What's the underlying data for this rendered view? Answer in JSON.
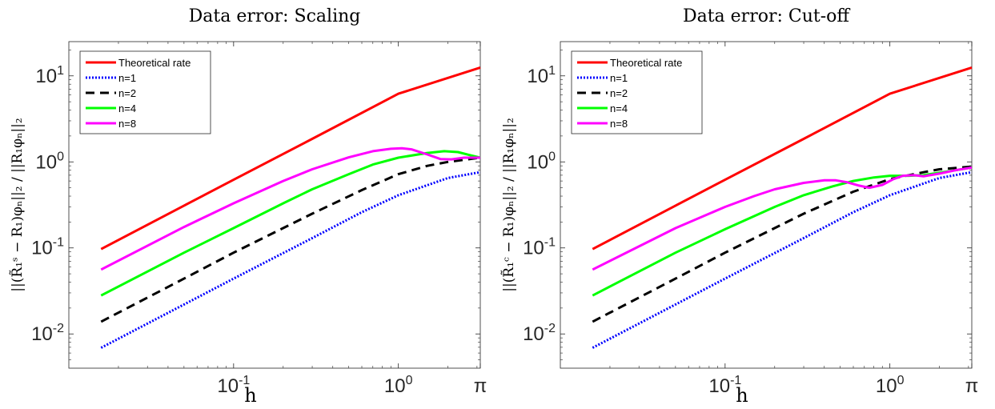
{
  "chart_data": [
    {
      "type": "line",
      "title": "Data error: Scaling",
      "xlabel": "h",
      "ylabel": "||(R̃₁ˢ − R₁)φₙ||₂ / ||R₁φₙ||₂",
      "xscale": "log",
      "yscale": "log",
      "xlim": [
        0.01,
        3.14159
      ],
      "ylim": [
        0.004,
        25
      ],
      "xticks": [
        {
          "value": 0.1,
          "label": "10",
          "exp": "-1"
        },
        {
          "value": 1,
          "label": "10",
          "exp": "0"
        },
        {
          "value": 3.14159,
          "label": "π",
          "exp": ""
        }
      ],
      "yticks": [
        {
          "value": 0.01,
          "label": "10",
          "exp": "-2"
        },
        {
          "value": 0.1,
          "label": "10",
          "exp": "-1"
        },
        {
          "value": 1,
          "label": "10",
          "exp": "0"
        },
        {
          "value": 10,
          "label": "10",
          "exp": "1"
        }
      ],
      "grid": false,
      "legend_position": "top-left",
      "series": [
        {
          "name": "Theoretical rate",
          "color": "#ff0000",
          "style": "solid",
          "x": [
            0.0157,
            0.05,
            0.1,
            0.3,
            1.0,
            3.14159
          ],
          "y": [
            0.097,
            0.31,
            0.62,
            1.85,
            6.2,
            12.5
          ]
        },
        {
          "name": "n=1",
          "color": "#0000ff",
          "style": "dotted",
          "x": [
            0.0157,
            0.05,
            0.1,
            0.3,
            0.6,
            1.0,
            2.0,
            3.14159
          ],
          "y": [
            0.0069,
            0.022,
            0.044,
            0.13,
            0.26,
            0.41,
            0.65,
            0.76
          ]
        },
        {
          "name": "n=2",
          "color": "#000000",
          "style": "dashed",
          "x": [
            0.0157,
            0.05,
            0.1,
            0.3,
            0.6,
            1.0,
            1.5,
            2.0,
            3.14159
          ],
          "y": [
            0.0139,
            0.044,
            0.088,
            0.25,
            0.47,
            0.72,
            0.9,
            1.0,
            1.12
          ]
        },
        {
          "name": "n=4",
          "color": "#00ff00",
          "style": "solid",
          "x": [
            0.0157,
            0.05,
            0.1,
            0.2,
            0.3,
            0.5,
            0.7,
            1.0,
            1.5,
            1.9,
            2.3,
            2.7,
            3.14159
          ],
          "y": [
            0.028,
            0.088,
            0.17,
            0.33,
            0.48,
            0.72,
            0.93,
            1.12,
            1.27,
            1.33,
            1.3,
            1.2,
            1.12
          ]
        },
        {
          "name": "n=8",
          "color": "#ff00ff",
          "style": "solid",
          "x": [
            0.0157,
            0.05,
            0.1,
            0.2,
            0.3,
            0.5,
            0.7,
            0.9,
            1.05,
            1.2,
            1.5,
            1.8,
            2.1,
            2.5,
            3.14159
          ],
          "y": [
            0.056,
            0.175,
            0.33,
            0.6,
            0.82,
            1.13,
            1.33,
            1.42,
            1.44,
            1.4,
            1.22,
            1.08,
            1.07,
            1.12,
            1.12
          ]
        }
      ]
    },
    {
      "type": "line",
      "title": "Data error: Cut-off",
      "xlabel": "h",
      "ylabel": "||(R̃₁ᶜ − R₁)φₙ||₂ / ||R₁φₙ||₂",
      "xscale": "log",
      "yscale": "log",
      "xlim": [
        0.01,
        3.14159
      ],
      "ylim": [
        0.004,
        25
      ],
      "xticks": [
        {
          "value": 0.1,
          "label": "10",
          "exp": "-1"
        },
        {
          "value": 1,
          "label": "10",
          "exp": "0"
        },
        {
          "value": 3.14159,
          "label": "π",
          "exp": ""
        }
      ],
      "yticks": [
        {
          "value": 0.01,
          "label": "10",
          "exp": "-2"
        },
        {
          "value": 0.1,
          "label": "10",
          "exp": "-1"
        },
        {
          "value": 1,
          "label": "10",
          "exp": "0"
        },
        {
          "value": 10,
          "label": "10",
          "exp": "1"
        }
      ],
      "grid": false,
      "legend_position": "top-left",
      "series": [
        {
          "name": "Theoretical rate",
          "color": "#ff0000",
          "style": "solid",
          "x": [
            0.0157,
            0.05,
            0.1,
            0.3,
            1.0,
            3.14159
          ],
          "y": [
            0.097,
            0.31,
            0.62,
            1.85,
            6.2,
            12.5
          ]
        },
        {
          "name": "n=1",
          "color": "#0000ff",
          "style": "dotted",
          "x": [
            0.0157,
            0.05,
            0.1,
            0.3,
            0.6,
            1.0,
            2.0,
            3.14159
          ],
          "y": [
            0.0069,
            0.022,
            0.044,
            0.13,
            0.26,
            0.41,
            0.65,
            0.76
          ]
        },
        {
          "name": "n=2",
          "color": "#000000",
          "style": "dashed",
          "x": [
            0.0157,
            0.05,
            0.1,
            0.3,
            0.6,
            1.0,
            1.5,
            2.0,
            3.14159
          ],
          "y": [
            0.0139,
            0.044,
            0.088,
            0.25,
            0.45,
            0.63,
            0.74,
            0.82,
            0.88
          ]
        },
        {
          "name": "n=4",
          "color": "#00ff00",
          "style": "solid",
          "x": [
            0.0157,
            0.05,
            0.1,
            0.2,
            0.3,
            0.45,
            0.6,
            0.8,
            1.0,
            1.3,
            1.6,
            2.0,
            2.5,
            3.14159
          ],
          "y": [
            0.028,
            0.088,
            0.165,
            0.3,
            0.41,
            0.52,
            0.6,
            0.66,
            0.69,
            0.69,
            0.7,
            0.75,
            0.8,
            0.86
          ]
        },
        {
          "name": "n=8",
          "color": "#ff00ff",
          "style": "solid",
          "x": [
            0.0157,
            0.05,
            0.1,
            0.15,
            0.2,
            0.3,
            0.4,
            0.47,
            0.55,
            0.65,
            0.75,
            0.9,
            1.05,
            1.2,
            1.4,
            1.6,
            2.0,
            2.5,
            3.14159
          ],
          "y": [
            0.056,
            0.17,
            0.3,
            0.4,
            0.48,
            0.57,
            0.61,
            0.61,
            0.58,
            0.53,
            0.5,
            0.54,
            0.63,
            0.69,
            0.7,
            0.68,
            0.73,
            0.8,
            0.86
          ]
        }
      ]
    }
  ]
}
